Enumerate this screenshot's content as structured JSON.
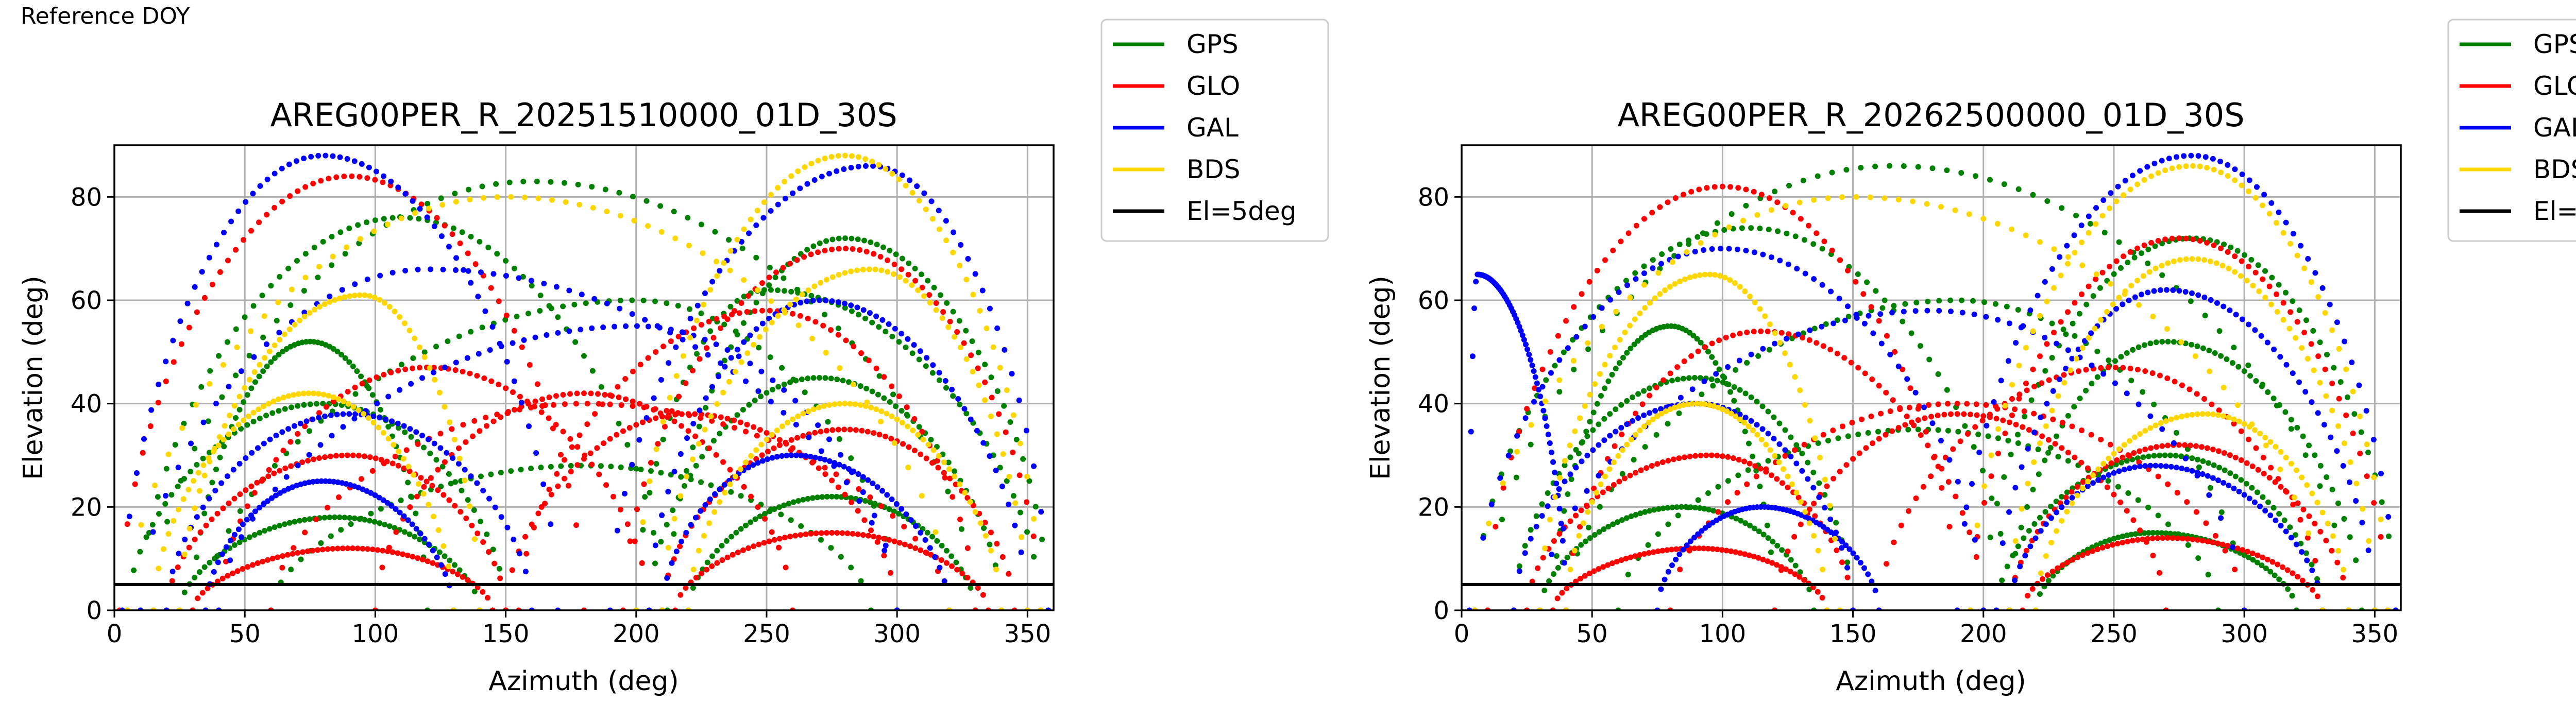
{
  "header_label": "Reference DOY",
  "legend_entries": [
    {
      "label": "GPS",
      "color": "#008000"
    },
    {
      "label": "GLO",
      "color": "#ff0000"
    },
    {
      "label": "GAL",
      "color": "#0000ff"
    },
    {
      "label": "BDS",
      "color": "#ffd700"
    },
    {
      "label": "El=5deg",
      "color": "#000000"
    }
  ],
  "chart_data": [
    {
      "type": "scatter",
      "title": "AREG00PER_R_20251510000_01D_30S",
      "xlabel": "Azimuth (deg)",
      "ylabel": "Elevation (deg)",
      "xlim": [
        0,
        360
      ],
      "ylim": [
        0,
        90
      ],
      "xticks": [
        0,
        50,
        100,
        150,
        200,
        250,
        300,
        350
      ],
      "yticks": [
        0,
        20,
        40,
        60,
        80
      ],
      "grid": true,
      "legend_position": "outside-right-top",
      "reference_line": {
        "name": "El=5deg",
        "y": 5,
        "color": "#000000"
      },
      "series": [
        {
          "name": "GPS",
          "color": "#008000",
          "tracks": [
            {
              "az_start": 15,
              "az_end": 330,
              "peak_az": 160,
              "peak_el": 83
            },
            {
              "az_start": 10,
              "az_end": 210,
              "peak_az": 110,
              "peak_el": 76
            },
            {
              "az_start": 35,
              "az_end": 300,
              "peak_az": 200,
              "peak_el": 60
            },
            {
              "az_start": 212,
              "az_end": 358,
              "peak_az": 280,
              "peak_el": 72
            },
            {
              "az_start": 5,
              "az_end": 150,
              "peak_az": 80,
              "peak_el": 40
            },
            {
              "az_start": 60,
              "az_end": 290,
              "peak_az": 180,
              "peak_el": 28
            },
            {
              "az_start": 205,
              "az_end": 340,
              "peak_az": 270,
              "peak_el": 45
            },
            {
              "az_start": 25,
              "az_end": 140,
              "peak_az": 85,
              "peak_el": 18
            },
            {
              "az_start": 220,
              "az_end": 330,
              "peak_az": 275,
              "peak_el": 22
            },
            {
              "az_start": 200,
              "az_end": 355,
              "peak_az": 250,
              "peak_el": 62
            },
            {
              "az_start": 30,
              "az_end": 120,
              "peak_az": 75,
              "peak_el": 52
            }
          ]
        },
        {
          "name": "GLO",
          "color": "#ff0000",
          "tracks": [
            {
              "az_start": 2,
              "az_end": 180,
              "peak_az": 90,
              "peak_el": 84
            },
            {
              "az_start": 195,
              "az_end": 355,
              "peak_az": 280,
              "peak_el": 70
            },
            {
              "az_start": 40,
              "az_end": 205,
              "peak_az": 120,
              "peak_el": 47
            },
            {
              "az_start": 155,
              "az_end": 330,
              "peak_az": 250,
              "peak_el": 58
            },
            {
              "az_start": 20,
              "az_end": 150,
              "peak_az": 90,
              "peak_el": 30
            },
            {
              "az_start": 210,
              "az_end": 345,
              "peak_az": 280,
              "peak_el": 35
            },
            {
              "az_start": 60,
              "az_end": 320,
              "peak_az": 180,
              "peak_el": 40
            },
            {
              "az_start": 100,
              "az_end": 260,
              "peak_az": 180,
              "peak_el": 42
            },
            {
              "az_start": 30,
              "az_end": 145,
              "peak_az": 90,
              "peak_el": 12
            },
            {
              "az_start": 215,
              "az_end": 335,
              "peak_az": 275,
              "peak_el": 15
            },
            {
              "az_start": 150,
              "az_end": 300,
              "peak_az": 220,
              "peak_el": 38
            }
          ]
        },
        {
          "name": "GAL",
          "color": "#0000ff",
          "tracks": [
            {
              "az_start": 3,
              "az_end": 170,
              "peak_az": 80,
              "peak_el": 88
            },
            {
              "az_start": 190,
              "az_end": 358,
              "peak_az": 290,
              "peak_el": 86
            },
            {
              "az_start": 10,
              "az_end": 300,
              "peak_az": 120,
              "peak_el": 66
            },
            {
              "az_start": 40,
              "az_end": 300,
              "peak_az": 200,
              "peak_el": 55
            },
            {
              "az_start": 205,
              "az_end": 350,
              "peak_az": 270,
              "peak_el": 60
            },
            {
              "az_start": 20,
              "az_end": 160,
              "peak_az": 90,
              "peak_el": 38
            },
            {
              "az_start": 210,
              "az_end": 320,
              "peak_az": 260,
              "peak_el": 30
            },
            {
              "az_start": 35,
              "az_end": 130,
              "peak_az": 80,
              "peak_el": 25
            }
          ]
        },
        {
          "name": "BDS",
          "color": "#ffd700",
          "tracks": [
            {
              "az_start": 200,
              "az_end": 355,
              "peak_az": 280,
              "peak_el": 88
            },
            {
              "az_start": 5,
              "az_end": 320,
              "peak_az": 150,
              "peak_el": 80
            },
            {
              "az_start": 25,
              "az_end": 140,
              "peak_az": 95,
              "peak_el": 61
            },
            {
              "az_start": 210,
              "az_end": 350,
              "peak_az": 290,
              "peak_el": 66
            },
            {
              "az_start": 15,
              "az_end": 130,
              "peak_az": 75,
              "peak_el": 42
            },
            {
              "az_start": 220,
              "az_end": 340,
              "peak_az": 280,
              "peak_el": 40
            }
          ]
        }
      ]
    },
    {
      "type": "scatter",
      "title": "AREG00PER_R_20262500000_01D_30S",
      "xlabel": "Azimuth (deg)",
      "ylabel": "Elevation (deg)",
      "xlim": [
        0,
        360
      ],
      "ylim": [
        0,
        90
      ],
      "xticks": [
        0,
        50,
        100,
        150,
        200,
        250,
        300,
        350
      ],
      "yticks": [
        0,
        20,
        40,
        60,
        80
      ],
      "grid": true,
      "legend_position": "outside-right-top",
      "reference_line": {
        "name": "El=5deg",
        "y": 5,
        "color": "#000000"
      },
      "series": [
        {
          "name": "GPS",
          "color": "#008000",
          "tracks": [
            {
              "az_start": 10,
              "az_end": 340,
              "peak_az": 165,
              "peak_el": 86
            },
            {
              "az_start": 5,
              "az_end": 210,
              "peak_az": 110,
              "peak_el": 74
            },
            {
              "az_start": 200,
              "az_end": 358,
              "peak_az": 280,
              "peak_el": 72
            },
            {
              "az_start": 40,
              "az_end": 300,
              "peak_az": 190,
              "peak_el": 60
            },
            {
              "az_start": 210,
              "az_end": 345,
              "peak_az": 270,
              "peak_el": 52
            },
            {
              "az_start": 20,
              "az_end": 150,
              "peak_az": 90,
              "peak_el": 45
            },
            {
              "az_start": 205,
              "az_end": 330,
              "peak_az": 270,
              "peak_el": 30
            },
            {
              "az_start": 30,
              "az_end": 135,
              "peak_az": 85,
              "peak_el": 20
            },
            {
              "az_start": 60,
              "az_end": 290,
              "peak_az": 175,
              "peak_el": 35
            },
            {
              "az_start": 220,
              "az_end": 320,
              "peak_az": 265,
              "peak_el": 15
            },
            {
              "az_start": 35,
              "az_end": 120,
              "peak_az": 80,
              "peak_el": 55
            }
          ]
        },
        {
          "name": "GLO",
          "color": "#ff0000",
          "tracks": [
            {
              "az_start": 10,
              "az_end": 190,
              "peak_az": 100,
              "peak_el": 82
            },
            {
              "az_start": 195,
              "az_end": 355,
              "peak_az": 275,
              "peak_el": 72
            },
            {
              "az_start": 40,
              "az_end": 200,
              "peak_az": 115,
              "peak_el": 54
            },
            {
              "az_start": 160,
              "az_end": 330,
              "peak_az": 250,
              "peak_el": 47
            },
            {
              "az_start": 25,
              "az_end": 150,
              "peak_az": 95,
              "peak_el": 30
            },
            {
              "az_start": 210,
              "az_end": 340,
              "peak_az": 275,
              "peak_el": 32
            },
            {
              "az_start": 80,
              "az_end": 300,
              "peak_az": 190,
              "peak_el": 40
            },
            {
              "az_start": 120,
              "az_end": 270,
              "peak_az": 190,
              "peak_el": 38
            },
            {
              "az_start": 35,
              "az_end": 140,
              "peak_az": 90,
              "peak_el": 12
            },
            {
              "az_start": 215,
              "az_end": 330,
              "peak_az": 270,
              "peak_el": 14
            }
          ]
        },
        {
          "name": "GAL",
          "color": "#0000ff",
          "tracks": [
            {
              "az_start": 190,
              "az_end": 358,
              "peak_az": 280,
              "peak_el": 88
            },
            {
              "az_start": 5,
              "az_end": 200,
              "peak_az": 100,
              "peak_el": 70
            },
            {
              "az_start": 30,
              "az_end": 300,
              "peak_az": 180,
              "peak_el": 58
            },
            {
              "az_start": 205,
              "az_end": 350,
              "peak_az": 270,
              "peak_el": 62
            },
            {
              "az_start": 20,
              "az_end": 150,
              "peak_az": 90,
              "peak_el": 40
            },
            {
              "az_start": 210,
              "az_end": 330,
              "peak_az": 265,
              "peak_el": 28
            },
            {
              "az_start": 75,
              "az_end": 160,
              "peak_az": 115,
              "peak_el": 20
            },
            {
              "az_start": 3,
              "az_end": 40,
              "peak_az": 6,
              "peak_el": 65
            }
          ]
        },
        {
          "name": "BDS",
          "color": "#ffd700",
          "tracks": [
            {
              "az_start": 195,
              "az_end": 355,
              "peak_az": 280,
              "peak_el": 86
            },
            {
              "az_start": 5,
              "az_end": 330,
              "peak_az": 150,
              "peak_el": 80
            },
            {
              "az_start": 30,
              "az_end": 145,
              "peak_az": 95,
              "peak_el": 65
            },
            {
              "az_start": 210,
              "az_end": 350,
              "peak_az": 280,
              "peak_el": 68
            },
            {
              "az_start": 40,
              "az_end": 140,
              "peak_az": 90,
              "peak_el": 40
            },
            {
              "az_start": 220,
              "az_end": 340,
              "peak_az": 285,
              "peak_el": 38
            }
          ]
        }
      ]
    }
  ]
}
